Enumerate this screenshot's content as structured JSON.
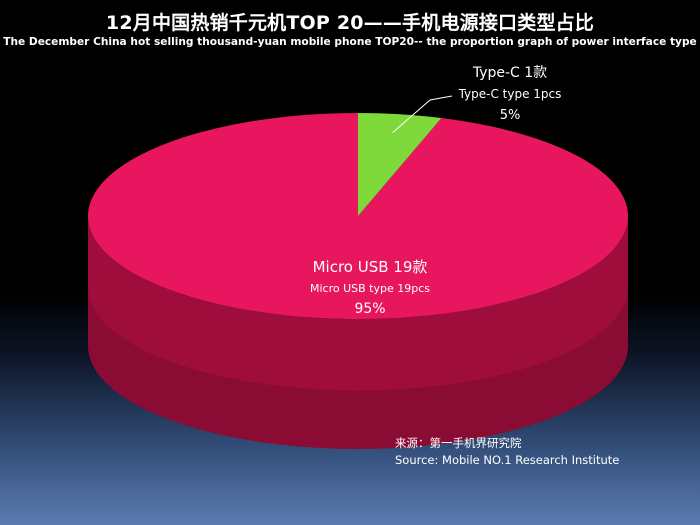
{
  "title": "12月中国热销千元机TOP 20——手机电源接口类型占比",
  "subtitle": "The December China hot selling thousand-yuan mobile phone TOP20-- the proportion graph of power interface type",
  "source": {
    "line1": "来源：第一手机界研究院",
    "line2": "Source: Mobile NO.1 Research Institute"
  },
  "colors": {
    "micro_usb": "#e8165e",
    "micro_usb_side": "#9e0d3c",
    "type_c": "#7fd93a",
    "type_c_side": "#4f9a1e"
  },
  "chart_data": {
    "type": "pie",
    "style": "3d",
    "title": "12月中国热销千元机TOP 20——手机电源接口类型占比",
    "slices": [
      {
        "label": "Micro USB 19款",
        "label_en": "Micro USB type 19pcs",
        "count": 19,
        "percent": "95%",
        "value": 95
      },
      {
        "label": "Type-C  1款",
        "label_en": "Type-C type  1pcs",
        "count": 1,
        "percent": "5%",
        "value": 5
      }
    ]
  }
}
